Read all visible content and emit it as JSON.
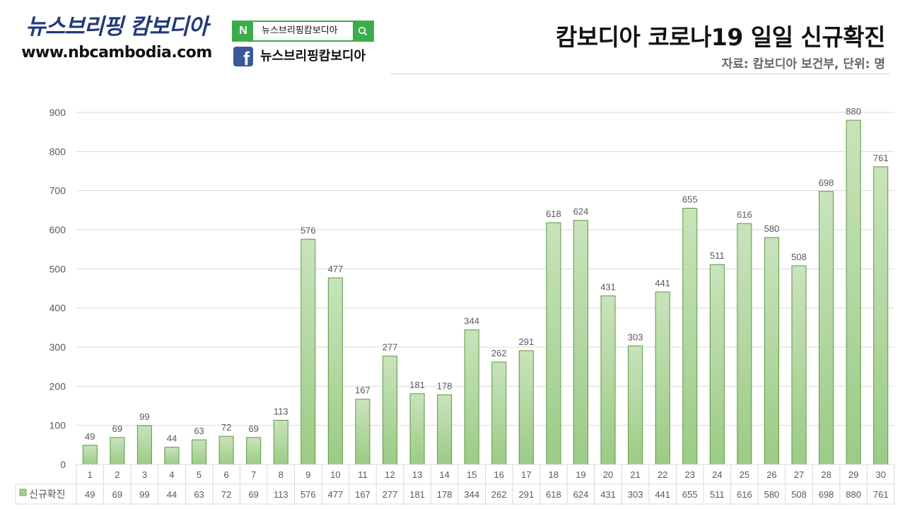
{
  "header": {
    "brand_name": "뉴스브리핑 캄보디아",
    "brand_url": "www.nbcambodia.com",
    "naver_search_text": "뉴스브리핑캄보디아",
    "facebook_text": "뉴스브리핑캄보디아",
    "title": "캄보디아 코로나19 일일 신규확진",
    "source": "자료: 캄보디아 보건부, 단위: 명"
  },
  "colors": {
    "bar_fill_top": "#c9e3bc",
    "bar_fill_bottom": "#9ccb86",
    "bar_stroke": "#5a9a3f",
    "legend_key": "#a9d18e",
    "gridline": "#d9d9d9",
    "axis_text": "#595959"
  },
  "chart_data": {
    "type": "bar",
    "title": "캄보디아 코로나19 일일 신규확진",
    "xlabel": "",
    "ylabel": "",
    "ylim": [
      0,
      900
    ],
    "yticks": [
      0,
      100,
      200,
      300,
      400,
      500,
      600,
      700,
      800,
      900
    ],
    "grid": true,
    "data_table": true,
    "categories": [
      "1",
      "2",
      "3",
      "4",
      "5",
      "6",
      "7",
      "8",
      "9",
      "10",
      "11",
      "12",
      "13",
      "14",
      "15",
      "16",
      "17",
      "18",
      "19",
      "20",
      "21",
      "22",
      "23",
      "24",
      "25",
      "26",
      "27",
      "28",
      "29",
      "30"
    ],
    "series": [
      {
        "name": "신규확진",
        "values": [
          49,
          69,
          99,
          44,
          63,
          72,
          69,
          113,
          576,
          477,
          167,
          277,
          181,
          178,
          344,
          262,
          291,
          618,
          624,
          431,
          303,
          441,
          655,
          511,
          616,
          580,
          508,
          698,
          880,
          761
        ]
      }
    ]
  }
}
